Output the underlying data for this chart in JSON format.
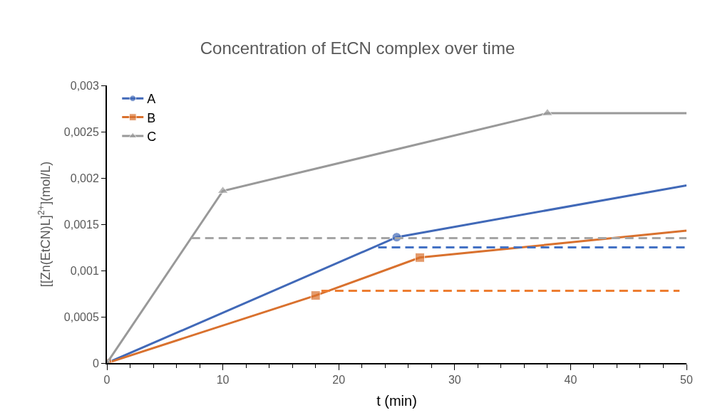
{
  "chart_data": {
    "type": "line",
    "title": "Concentration of EtCN complex over time",
    "xlabel": "t (min)",
    "ylabel": "[[Zn(EtCN)L]$^{2+}$](mol/L)",
    "xlim": [
      0,
      50
    ],
    "xticks": [
      0,
      10,
      20,
      30,
      40,
      50
    ],
    "ylim": [
      0,
      0.003
    ],
    "yticks": [
      0,
      {
        "value": 0.0005,
        "label": "0,0005"
      },
      {
        "value": 0.001,
        "label": "0,001"
      },
      {
        "value": 0.0015,
        "label": "0,0015"
      },
      {
        "value": 0.002,
        "label": "0,002"
      },
      {
        "value": 0.0025,
        "label": "0,0025"
      },
      {
        "value": 0.003,
        "label": "0,003"
      }
    ],
    "legend": "top left",
    "line_style": "solid",
    "series": [
      {
        "name": "A",
        "color": "#4169b8",
        "marker": "circle",
        "x": [
          0,
          25,
          50
        ],
        "values": [
          0,
          0.00136,
          0.00192
        ]
      },
      {
        "name": "B",
        "color": "#d9712e",
        "marker": "square",
        "x": [
          0,
          18,
          27,
          50
        ],
        "values": [
          0,
          0.00073,
          0.00114,
          0.00143
        ]
      },
      {
        "name": "C",
        "color": "#999999",
        "marker": "triangle",
        "x": [
          0,
          10,
          38,
          50
        ],
        "values": [
          0,
          0.00186,
          0.0027,
          0.0027
        ]
      },
      {
        "color": "#4472c4",
        "marker": "none",
        "line_style": "dashed",
        "x": [
          23.4,
          50
        ],
        "values": [
          0.00125,
          0.00125
        ]
      },
      {
        "color": "#ed7d31",
        "marker": "none",
        "line_style": "dashed",
        "x": [
          18.5,
          49.4
        ],
        "values": [
          0.00078,
          0.00078
        ]
      },
      {
        "color": "#a5a5a5",
        "marker": "none",
        "line_style": "dashed",
        "x": [
          7.3,
          50
        ],
        "values": [
          0.00135,
          0.00135
        ]
      }
    ]
  }
}
